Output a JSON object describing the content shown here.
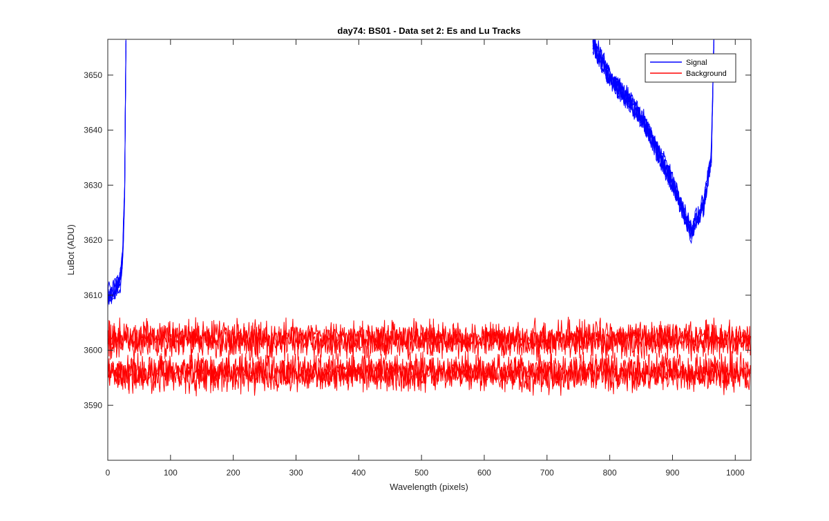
{
  "chart_data": {
    "type": "line",
    "title": "day74: BS01 - Data set 2: Es and Lu Tracks",
    "xlabel": "Wavelength (pixels)",
    "ylabel": "LuBot (ADU)",
    "xlim": [
      0,
      1025
    ],
    "ylim": [
      3580,
      3656.5
    ],
    "xticks": [
      0,
      100,
      200,
      300,
      400,
      500,
      600,
      700,
      800,
      900,
      1000
    ],
    "yticks": [
      3590,
      3600,
      3610,
      3620,
      3630,
      3640,
      3650
    ],
    "grid": false,
    "legend_position": "top-right",
    "series": [
      {
        "name": "Signal",
        "color": "#0000ff",
        "description_points_left": [
          [
            0,
            3610
          ],
          [
            10,
            3611
          ],
          [
            20,
            3613
          ],
          [
            24,
            3618
          ],
          [
            27,
            3630
          ],
          [
            29,
            3656.5
          ]
        ],
        "description_points_right": [
          [
            773,
            3656.5
          ],
          [
            800,
            3650
          ],
          [
            850,
            3643
          ],
          [
            900,
            3631
          ],
          [
            930,
            3622
          ],
          [
            950,
            3627
          ],
          [
            962,
            3636
          ],
          [
            966,
            3656.5
          ]
        ],
        "tracks": 6
      },
      {
        "name": "Background",
        "color": "#ff0000",
        "level_values": [
          3596,
          3602
        ],
        "noise_range": [
          3591,
          3606
        ],
        "tracks": 6
      }
    ]
  }
}
